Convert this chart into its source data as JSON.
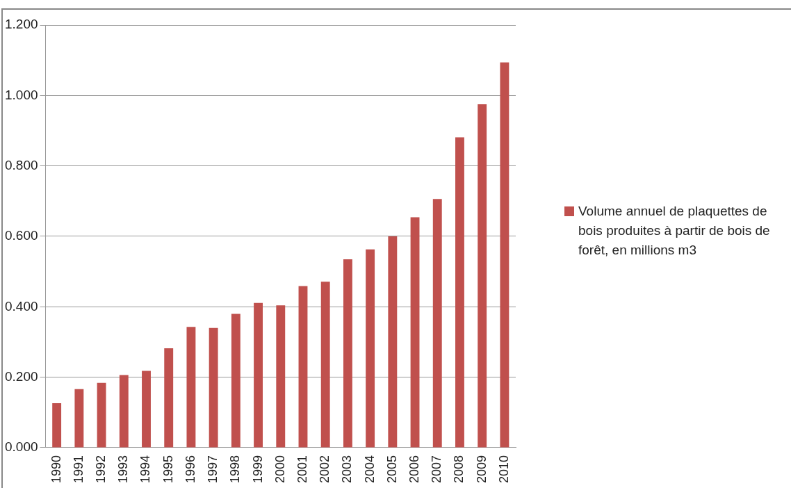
{
  "chart_data": {
    "type": "bar",
    "categories": [
      "1990",
      "1991",
      "1992",
      "1993",
      "1994",
      "1995",
      "1996",
      "1997",
      "1998",
      "1999",
      "2000",
      "2001",
      "2002",
      "2003",
      "2004",
      "2005",
      "2006",
      "2007",
      "2008",
      "2009",
      "2010"
    ],
    "series": [
      {
        "name": "Volume annuel de plaquettes de bois produites à partir de bois de forêt, en millions m3",
        "color": "#c0504d",
        "values": [
          0.126,
          0.166,
          0.184,
          0.206,
          0.218,
          0.282,
          0.343,
          0.34,
          0.38,
          0.411,
          0.404,
          0.459,
          0.471,
          0.535,
          0.563,
          0.6,
          0.654,
          0.706,
          0.881,
          0.975,
          1.094
        ]
      }
    ],
    "ylim": [
      0,
      1.2
    ],
    "yticks": [
      {
        "value": 0,
        "label": "0.000"
      },
      {
        "value": 0.2,
        "label": "0.200"
      },
      {
        "value": 0.4,
        "label": "0.400"
      },
      {
        "value": 0.6,
        "label": "0.600"
      },
      {
        "value": 0.8,
        "label": "0.800"
      },
      {
        "value": 1.0,
        "label": "1.000"
      },
      {
        "value": 1.2,
        "label": "1.200"
      }
    ],
    "grid": "y",
    "legend": "right"
  }
}
